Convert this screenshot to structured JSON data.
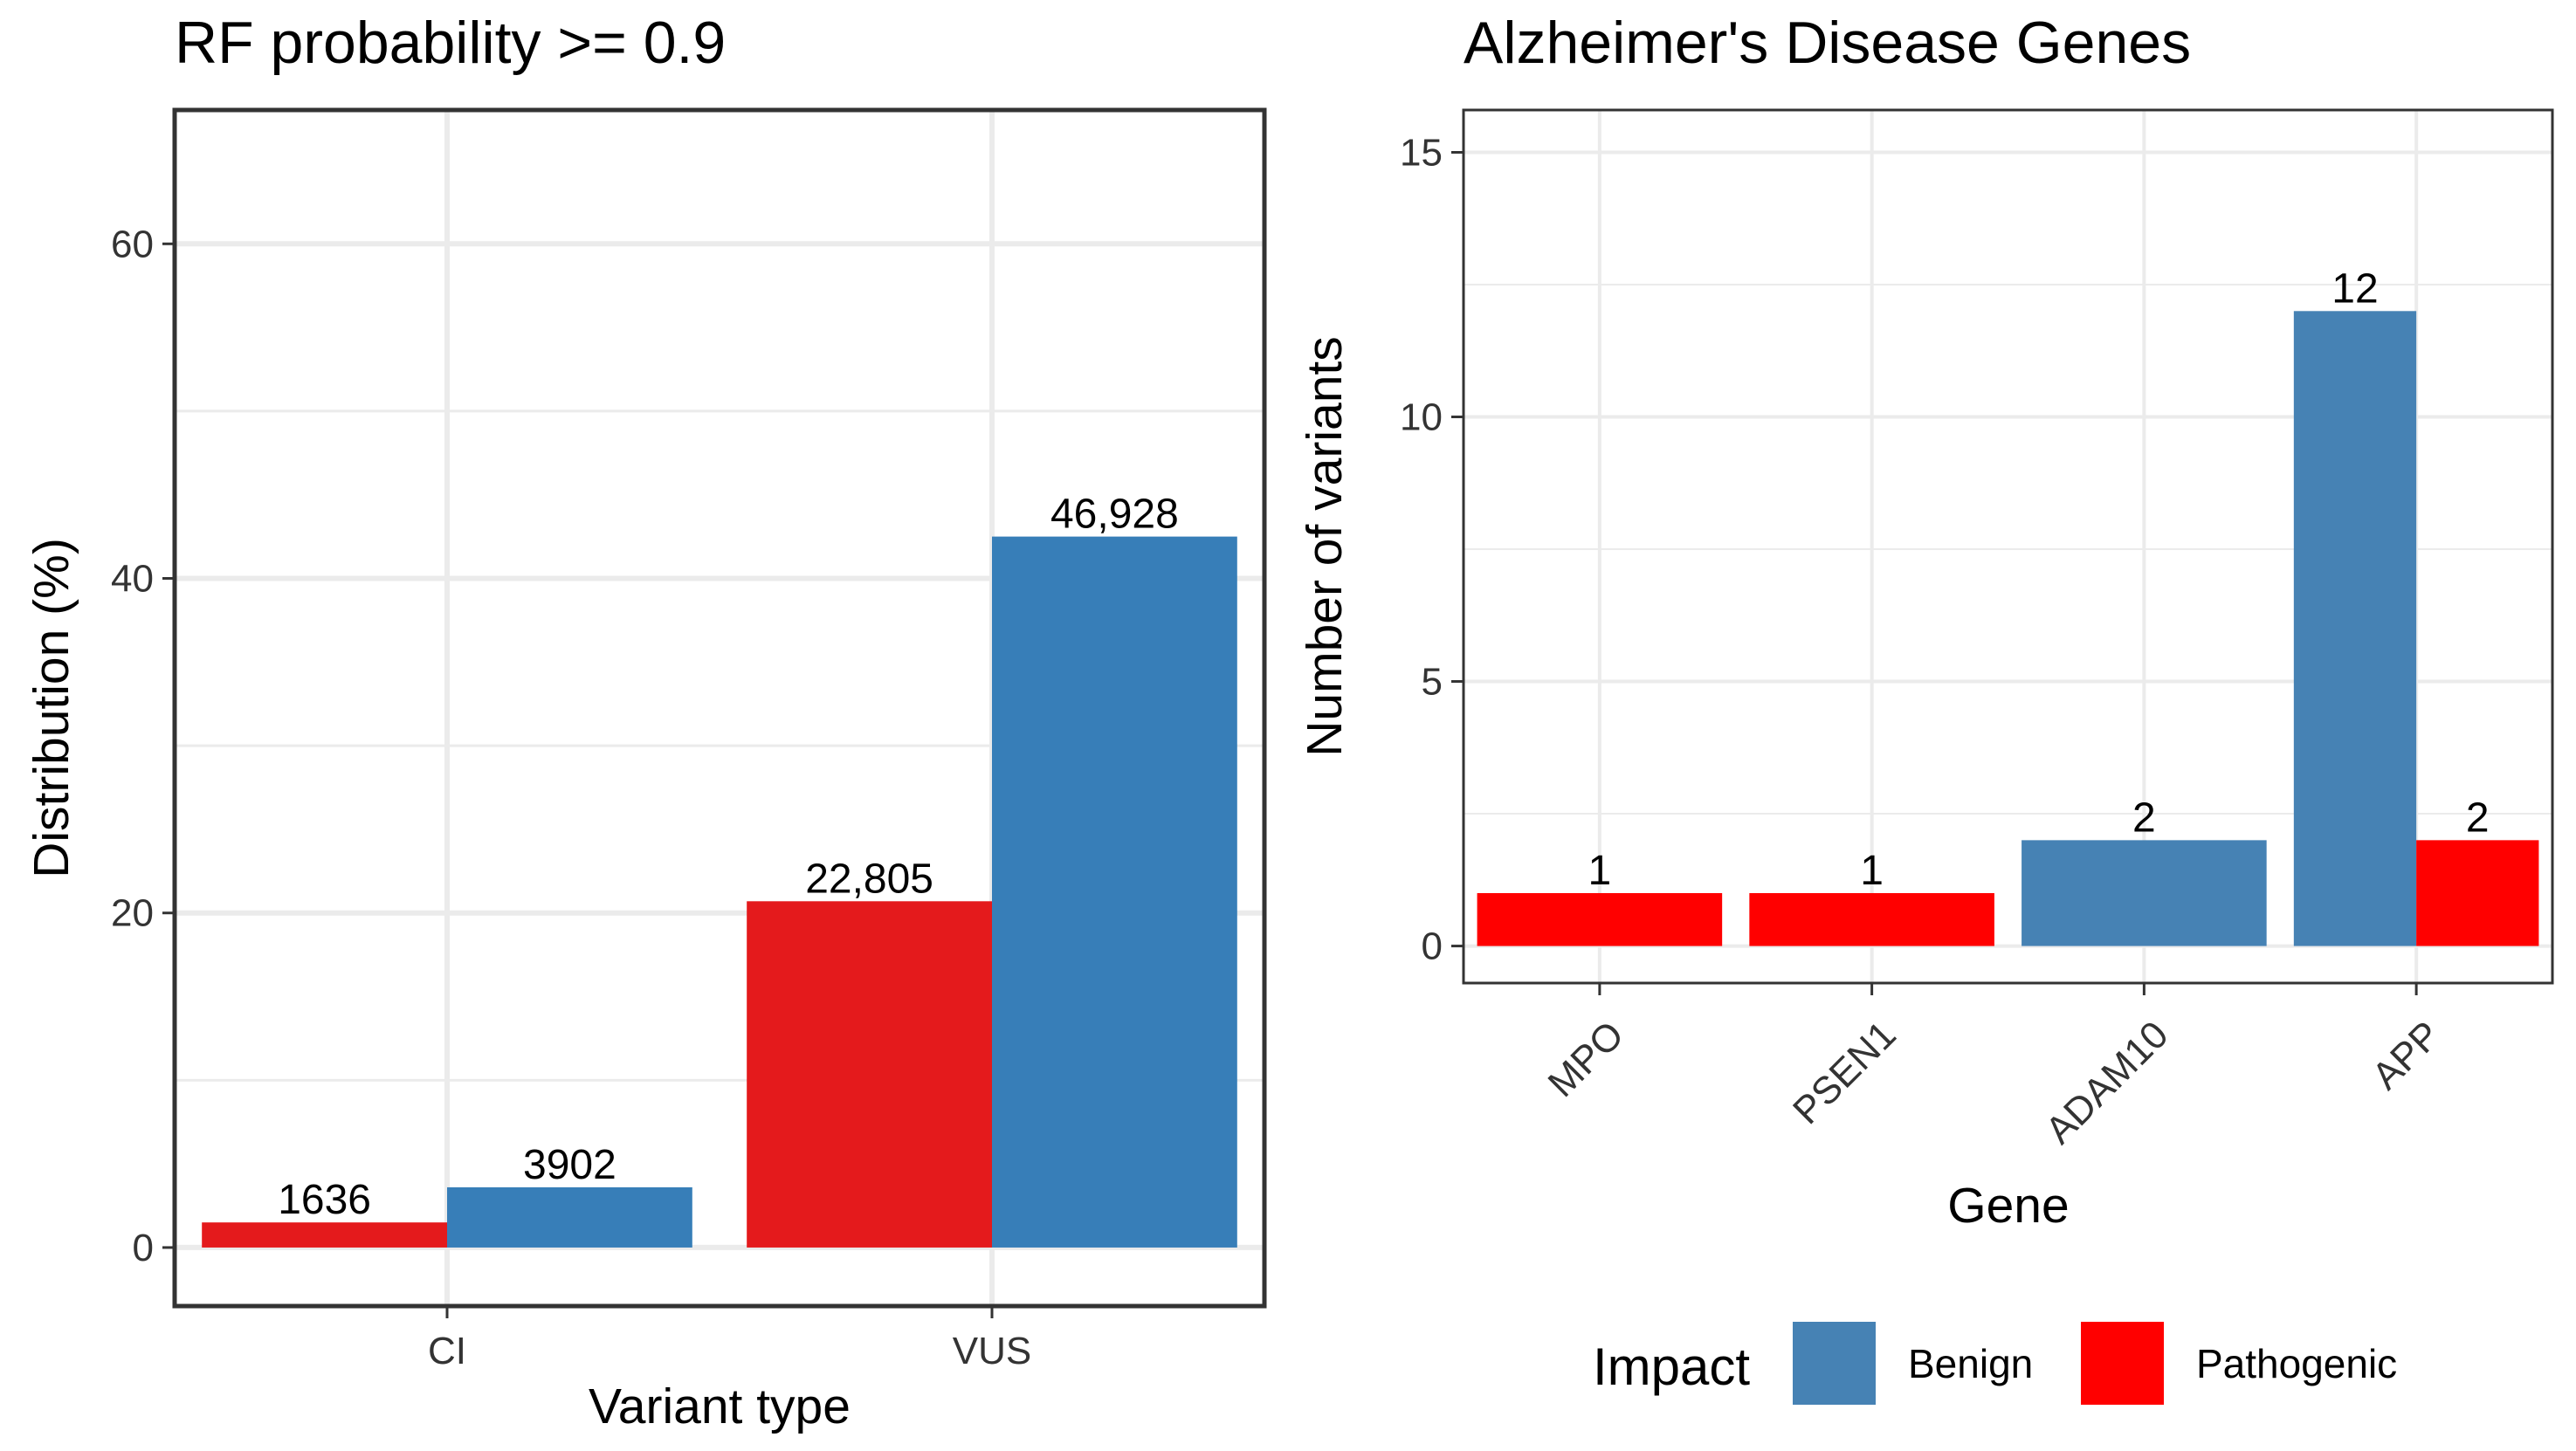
{
  "chart_data": [
    {
      "type": "bar",
      "title": "RF probability >= 0.9",
      "xlabel": "Variant type",
      "ylabel": "Distribution (%)",
      "categories": [
        "CI",
        "VUS"
      ],
      "yticks": [
        0,
        20,
        40,
        60
      ],
      "ylim": [
        -3.5,
        68
      ],
      "grid": true,
      "series": [
        {
          "color": "#E41A1C",
          "values": [
            1.5,
            20.7
          ],
          "labels": [
            "1636",
            "22,805"
          ]
        },
        {
          "color": "#377EB8",
          "values": [
            3.6,
            42.5
          ],
          "labels": [
            "3902",
            "46,928"
          ]
        }
      ]
    },
    {
      "type": "bar",
      "title": "Alzheimer's Disease Genes",
      "xlabel": "Gene",
      "ylabel": "Number of variants",
      "categories": [
        "MPO",
        "PSEN1",
        "ADAM10",
        "APP"
      ],
      "yticks": [
        0,
        5,
        10,
        15
      ],
      "ylim": [
        -0.7,
        15.8
      ],
      "grid": true,
      "legend": {
        "title": "Impact",
        "position": "bottom",
        "entries": [
          {
            "name": "Benign",
            "color": "#4682B4"
          },
          {
            "name": "Pathogenic",
            "color": "#FF0000"
          }
        ]
      },
      "bars": [
        {
          "category": "MPO",
          "impact": "Pathogenic",
          "value": 1,
          "label": "1",
          "slot": "full"
        },
        {
          "category": "PSEN1",
          "impact": "Pathogenic",
          "value": 1,
          "label": "1",
          "slot": "full"
        },
        {
          "category": "ADAM10",
          "impact": "Benign",
          "value": 2,
          "label": "2",
          "slot": "full"
        },
        {
          "category": "APP",
          "impact": "Benign",
          "value": 12,
          "label": "12",
          "slot": "left"
        },
        {
          "category": "APP",
          "impact": "Pathogenic",
          "value": 2,
          "label": "2",
          "slot": "right"
        }
      ]
    }
  ]
}
